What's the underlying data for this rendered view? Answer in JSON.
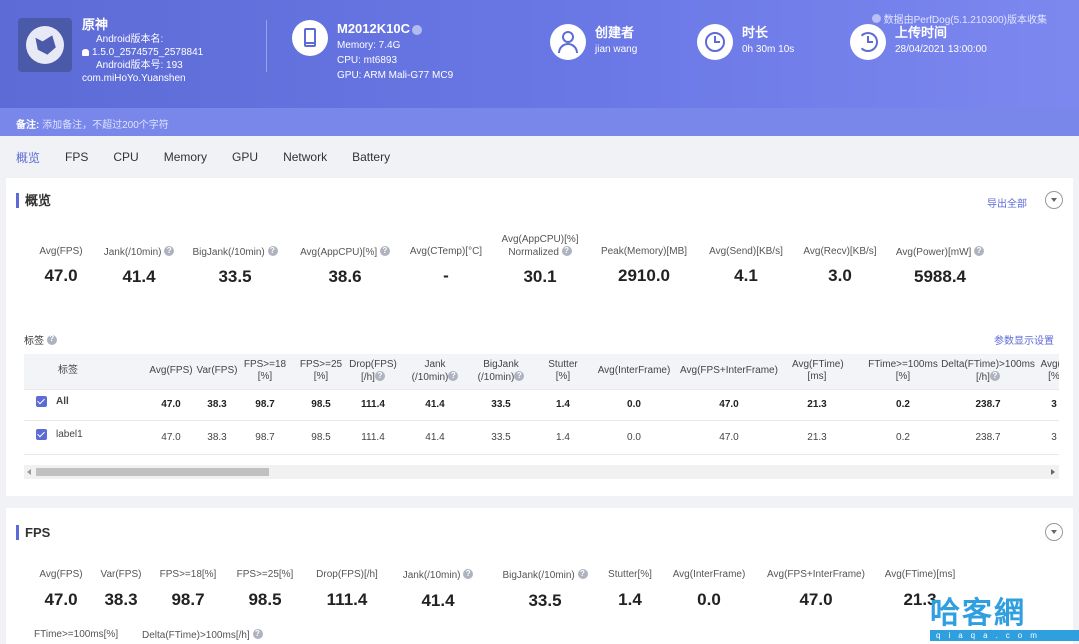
{
  "header": {
    "source_note": "数据由PerfDog(5.1.210300)版本收集",
    "app": {
      "name": "原神",
      "android_version_name_label": "Android版本名:",
      "version_name": "1.5.0_2574575_2578841",
      "android_version_code": "Android版本号: 193",
      "package": "com.miHoYo.Yuanshen"
    },
    "device": {
      "model": "M2012K10C",
      "memory": "Memory: 7.4G",
      "cpu": "CPU: mt6893",
      "gpu": "GPU: ARM Mali-G77 MC9"
    },
    "creator": {
      "label": "创建者",
      "value": "jian wang"
    },
    "duration": {
      "label": "时长",
      "value": "0h 30m 10s"
    },
    "upload": {
      "label": "上传时间",
      "value": "28/04/2021 13:00:00"
    }
  },
  "remark": {
    "label": "备注:",
    "placeholder": "添加备注，不超过200个字符"
  },
  "tabs": [
    "概览",
    "FPS",
    "CPU",
    "Memory",
    "GPU",
    "Network",
    "Battery"
  ],
  "overview": {
    "title": "概览",
    "export": "导出全部",
    "metrics": [
      {
        "label": "Avg(FPS)",
        "value": "47.0"
      },
      {
        "label": "Jank(/10min)",
        "value": "41.4"
      },
      {
        "label": "BigJank(/10min)",
        "value": "33.5"
      },
      {
        "label": "Avg(AppCPU)[%]",
        "value": "38.6"
      },
      {
        "label": "Avg(CTemp)[°C]",
        "value": "-"
      },
      {
        "label": "Avg(AppCPU)[%]",
        "label2": "Normalized",
        "value": "30.1"
      },
      {
        "label": "Peak(Memory)[MB]",
        "value": "2910.0"
      },
      {
        "label": "Avg(Send)[KB/s]",
        "value": "4.1"
      },
      {
        "label": "Avg(Recv)[KB/s]",
        "value": "3.0"
      },
      {
        "label": "Avg(Power)[mW]",
        "value": "5988.4"
      }
    ],
    "tags_label": "标签",
    "param_settings": "参数显示设置",
    "table": {
      "headers": [
        {
          "l1": "标签"
        },
        {
          "l1": "Avg(FPS)"
        },
        {
          "l1": "Var(FPS)"
        },
        {
          "l1": "FPS>=18",
          "l2": "[%]"
        },
        {
          "l1": "FPS>=25",
          "l2": "[%]"
        },
        {
          "l1": "Drop(FPS)",
          "l2": "[/h]"
        },
        {
          "l1": "Jank",
          "l2": "(/10min)"
        },
        {
          "l1": "BigJank",
          "l2": "(/10min)"
        },
        {
          "l1": "Stutter",
          "l2": "[%]"
        },
        {
          "l1": "Avg(InterFrame)"
        },
        {
          "l1": "Avg(FPS+InterFrame)"
        },
        {
          "l1": "Avg(FTime)",
          "l2": "[ms]"
        },
        {
          "l1": "FTime>=100ms",
          "l2": "[%]"
        },
        {
          "l1": "Delta(FTime)>100ms",
          "l2": "[/h]"
        },
        {
          "l1": "Avg(A",
          "l2": "[%"
        }
      ],
      "rows": [
        {
          "label": "All",
          "cells": [
            "47.0",
            "38.3",
            "98.7",
            "98.5",
            "111.4",
            "41.4",
            "33.5",
            "1.4",
            "0.0",
            "47.0",
            "21.3",
            "0.2",
            "238.7",
            "3"
          ]
        },
        {
          "label": "label1",
          "cells": [
            "47.0",
            "38.3",
            "98.7",
            "98.5",
            "111.4",
            "41.4",
            "33.5",
            "1.4",
            "0.0",
            "47.0",
            "21.3",
            "0.2",
            "238.7",
            "3"
          ]
        }
      ]
    }
  },
  "fps": {
    "title": "FPS",
    "metrics": [
      {
        "label": "Avg(FPS)",
        "value": "47.0"
      },
      {
        "label": "Var(FPS)",
        "value": "38.3"
      },
      {
        "label": "FPS>=18[%]",
        "value": "98.7"
      },
      {
        "label": "FPS>=25[%]",
        "value": "98.5"
      },
      {
        "label": "Drop(FPS)[/h]",
        "value": "111.4"
      },
      {
        "label": "Jank(/10min)",
        "value": "41.4"
      },
      {
        "label": "BigJank(/10min)",
        "value": "33.5"
      },
      {
        "label": "Stutter[%]",
        "value": "1.4"
      },
      {
        "label": "Avg(InterFrame)",
        "value": "0.0"
      },
      {
        "label": "Avg(FPS+InterFrame)",
        "value": "47.0"
      },
      {
        "label": "Avg(FTime)[ms]",
        "value": "21.3"
      }
    ],
    "metrics_row2": [
      {
        "label": "FTime>=100ms[%]"
      },
      {
        "label": "Delta(FTime)>100ms[/h]"
      }
    ]
  },
  "watermark": {
    "main": "哈客網",
    "sub": "qiaqa.com"
  },
  "colors": {
    "accent": "#5d6bd6",
    "header": "#6a78e6"
  }
}
